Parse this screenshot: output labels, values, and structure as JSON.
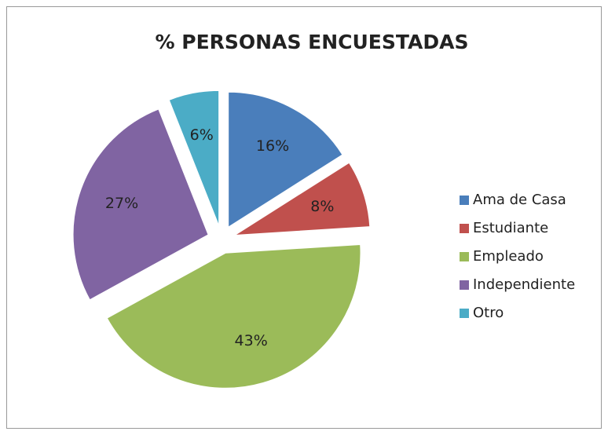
{
  "chart_data": {
    "type": "pie",
    "title": "% PERSONAS ENCUESTADAS",
    "categories": [
      "Ama de Casa",
      "Estudiante",
      "Empleado",
      "Independiente",
      "Otro"
    ],
    "values": [
      16,
      8,
      43,
      27,
      6
    ],
    "value_labels": [
      "16%",
      "8%",
      "43%",
      "27%",
      "6%"
    ],
    "colors": [
      "#4a7ebb",
      "#c0504d",
      "#9bbb59",
      "#8064a2",
      "#4bacc6"
    ],
    "legend": "right"
  }
}
